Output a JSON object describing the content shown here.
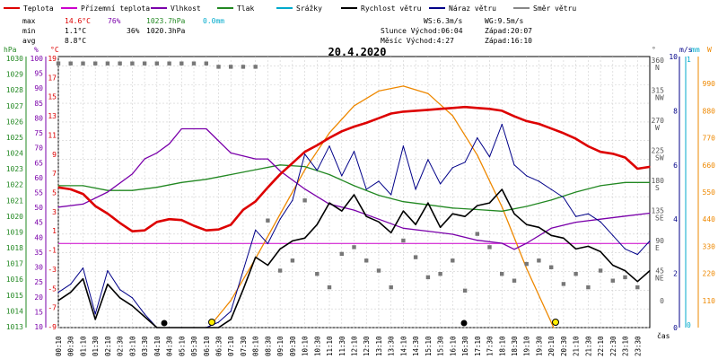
{
  "chart_data": {
    "type": "line",
    "title": "20.4.2020",
    "legend": [
      {
        "name": "Teplota",
        "color": "#dd0000"
      },
      {
        "name": "Přízemní teplota",
        "color": "#cc00cc"
      },
      {
        "name": "Vlhkost",
        "color": "#7a00aa"
      },
      {
        "name": "Tlak",
        "color": "#228822"
      },
      {
        "name": "Srážky",
        "color": "#00aacc"
      },
      {
        "name": "Rychlost větru",
        "color": "#000000"
      },
      {
        "name": "Náraz větru",
        "color": "#000088"
      },
      {
        "name": "Směr větru",
        "color": "#888888"
      }
    ],
    "stats": {
      "max_label": "max",
      "min_label": "min",
      "avg_label": "avg",
      "max_temp": "14.6°C",
      "max_hum": "76%",
      "max_press": "1023.7hPa",
      "max_rain": "0.0mm",
      "min_temp": "1.1°C",
      "min_hum": "36%",
      "min_press": "1020.3hPa",
      "avg_temp": "8.8°C"
    },
    "info": {
      "ws": "WS:6.3m/s",
      "wg": "WG:9.5m/s",
      "sun_rise": "Slunce Východ:06:04",
      "sun_set": "Západ:20:07",
      "moon_rise": "Měsíc  Východ:4:27",
      "moon_set": "Západ:16:10"
    },
    "axis_units": {
      "hpa": "hPa",
      "pct": "%",
      "c": "°C",
      "deg": "°",
      "ms": "m/s",
      "mm": "mm",
      "w": "W",
      "time": "čas"
    },
    "x_ticks": [
      "00:10",
      "00:30",
      "01:10",
      "01:30",
      "02:10",
      "02:30",
      "03:10",
      "03:30",
      "04:10",
      "04:30",
      "05:10",
      "05:30",
      "06:10",
      "06:30",
      "07:10",
      "07:30",
      "08:10",
      "08:30",
      "09:10",
      "09:30",
      "10:10",
      "10:30",
      "11:10",
      "11:30",
      "12:10",
      "12:30",
      "13:10",
      "13:30",
      "14:10",
      "14:30",
      "15:10",
      "15:30",
      "16:10",
      "16:30",
      "17:10",
      "17:30",
      "18:10",
      "18:30",
      "19:10",
      "19:30",
      "20:10",
      "20:30",
      "21:10",
      "21:30",
      "22:10",
      "22:30",
      "23:10",
      "23:30"
    ],
    "hpa_ticks": [
      "1030",
      "1029",
      "1028",
      "1027",
      "1026",
      "1025",
      "1024",
      "1023",
      "1022",
      "1021",
      "1020",
      "1019",
      "1018",
      "1017",
      "1016",
      "1015",
      "1014",
      "1013"
    ],
    "pct_ticks": [
      "100",
      "95",
      "90",
      "85",
      "80",
      "75",
      "70",
      "65",
      "60",
      "55",
      "50",
      "45",
      "40",
      "35",
      "30",
      "25",
      "20",
      "15",
      "10"
    ],
    "c_ticks": [
      "19",
      "17",
      "15",
      "13",
      "11",
      "9",
      "7",
      "5",
      "3",
      "1",
      "-1",
      "-3",
      "-5",
      "-7",
      "-9"
    ],
    "c_tick_values": [
      19,
      17,
      15,
      13,
      11,
      9,
      7,
      5,
      3,
      1,
      -1,
      -3,
      -5,
      -7,
      -9
    ],
    "deg_ticks": [
      "360",
      "315",
      "270",
      "225",
      "180",
      "135",
      "90",
      "45",
      "0"
    ],
    "dir_ticks": [
      "N",
      "NW",
      "W",
      "SW",
      "S",
      "SE",
      "E",
      "NE"
    ],
    "ms_ticks": [
      "10",
      "8",
      "6",
      "4",
      "2",
      "0"
    ],
    "mm_ticks": [
      "1",
      "0"
    ],
    "w_ticks": [
      "990",
      "880",
      "770",
      "660",
      "550",
      "440",
      "330",
      "220",
      "110"
    ],
    "ylim_temp": [
      -9,
      20
    ],
    "ylim_hum": [
      10,
      100
    ],
    "ylim_press": [
      1013,
      1030
    ],
    "ylim_wind": [
      0,
      10
    ],
    "ylim_solar": [
      0,
      1100
    ],
    "series": [
      {
        "name": "Teplota",
        "color": "#dd0000",
        "axis": "temp",
        "x": [
          0,
          0.5,
          1,
          1.5,
          2,
          2.5,
          3,
          3.5,
          4,
          4.5,
          5,
          5.5,
          6,
          6.5,
          7,
          7.5,
          8,
          8.5,
          9,
          9.5,
          10,
          10.5,
          11,
          11.5,
          12,
          12.5,
          13,
          13.5,
          14,
          14.5,
          15,
          15.5,
          16,
          16.5,
          17,
          17.5,
          18,
          18.5,
          19,
          19.5,
          20,
          20.5,
          21,
          21.5,
          22,
          22.5,
          23,
          23.5,
          24
        ],
        "y": [
          6,
          5.8,
          5.3,
          4,
          3.2,
          2.2,
          1.3,
          1.4,
          2.3,
          2.6,
          2.5,
          1.9,
          1.4,
          1.5,
          2,
          3.6,
          4.5,
          6,
          7.4,
          8.6,
          9.8,
          10.5,
          11.3,
          12,
          12.5,
          12.9,
          13.4,
          13.9,
          14.1,
          14.2,
          14.3,
          14.4,
          14.5,
          14.6,
          14.5,
          14.4,
          14.2,
          13.6,
          13.1,
          12.8,
          12.3,
          11.8,
          11.2,
          10.4,
          9.8,
          9.6,
          9.2,
          8,
          8.2
        ]
      },
      {
        "name": "Vlhkost",
        "color": "#7a00aa",
        "axis": "hum",
        "x": [
          0,
          1,
          2,
          3,
          3.5,
          4,
          4.5,
          5,
          5.5,
          6,
          6.5,
          7,
          7.5,
          8,
          8.5,
          9,
          10,
          11,
          12,
          13,
          14,
          15,
          16,
          17,
          18,
          18.5,
          19,
          20,
          21,
          22,
          23,
          24
        ],
        "y": [
          50,
          51,
          55,
          61,
          66,
          68,
          71,
          76,
          76,
          76,
          72,
          68,
          67,
          66,
          66,
          62,
          56,
          51,
          49,
          46,
          43,
          42,
          41,
          39,
          38,
          36,
          38,
          43,
          45,
          46,
          47,
          48
        ]
      },
      {
        "name": "Tlak",
        "color": "#228822",
        "axis": "press",
        "x": [
          0,
          1,
          2,
          3,
          4,
          5,
          6,
          7,
          8,
          9,
          10,
          11,
          12,
          13,
          14,
          15,
          16,
          17,
          18,
          19,
          20,
          21,
          22,
          23,
          24
        ],
        "y": [
          1021.9,
          1021.9,
          1021.6,
          1021.6,
          1021.8,
          1022.1,
          1022.3,
          1022.6,
          1022.9,
          1023.2,
          1023.1,
          1022.6,
          1021.9,
          1021.3,
          1020.9,
          1020.7,
          1020.5,
          1020.4,
          1020.3,
          1020.6,
          1021.0,
          1021.5,
          1021.9,
          1022.1,
          1022.1
        ]
      },
      {
        "name": "Rychlost větru",
        "color": "#000000",
        "axis": "wind",
        "x": [
          0,
          0.5,
          1,
          1.5,
          2,
          2.5,
          3,
          3.5,
          4,
          4.5,
          5,
          5.5,
          6,
          6.5,
          7,
          7.5,
          8,
          8.5,
          9,
          9.5,
          10,
          10.5,
          11,
          11.5,
          12,
          12.5,
          13,
          13.5,
          14,
          14.5,
          15,
          15.5,
          16,
          16.5,
          17,
          17.5,
          18,
          18.5,
          19,
          19.5,
          20,
          20.5,
          21,
          21.5,
          22,
          22.5,
          23,
          23.5,
          24
        ],
        "y": [
          1,
          1.3,
          1.8,
          0.3,
          1.6,
          1.1,
          0.8,
          0.4,
          0,
          0,
          0,
          0,
          0,
          0,
          0.3,
          1.4,
          2.6,
          2.3,
          2.9,
          3.2,
          3.3,
          3.8,
          4.6,
          4.3,
          4.9,
          4.1,
          3.9,
          3.5,
          4.3,
          3.8,
          4.6,
          3.7,
          4.2,
          4.1,
          4.5,
          4.6,
          5.1,
          4.2,
          3.8,
          3.7,
          3.4,
          3.3,
          2.9,
          3,
          2.8,
          2.3,
          2.1,
          1.7,
          2.1
        ]
      },
      {
        "name": "Náraz větru",
        "color": "#000088",
        "axis": "wind",
        "x": [
          0,
          0.5,
          1,
          1.5,
          2,
          2.5,
          3,
          3.5,
          4,
          4.5,
          5,
          5.5,
          6,
          6.5,
          7,
          7.5,
          8,
          8.5,
          9,
          9.5,
          10,
          10.5,
          11,
          11.5,
          12,
          12.5,
          13,
          13.5,
          14,
          14.5,
          15,
          15.5,
          16,
          16.5,
          17,
          17.5,
          18,
          18.5,
          19,
          19.5,
          20,
          20.5,
          21,
          21.5,
          22,
          22.5,
          23,
          23.5,
          24
        ],
        "y": [
          1.3,
          1.6,
          2.2,
          0.5,
          2.1,
          1.4,
          1.1,
          0.5,
          0,
          0,
          0,
          0,
          0,
          0.2,
          0.6,
          2.1,
          3.6,
          3.1,
          4,
          4.7,
          6.4,
          5.8,
          6.7,
          5.6,
          6.5,
          5.1,
          5.4,
          4.9,
          6.7,
          5.1,
          6.2,
          5.3,
          5.9,
          6.1,
          7,
          6.3,
          7.5,
          6,
          5.6,
          5.4,
          5.1,
          4.8,
          4.1,
          4.2,
          3.9,
          3.4,
          2.9,
          2.7,
          3.2
        ]
      },
      {
        "name": "Solar",
        "color": "#ee8800",
        "axis": "solar",
        "x": [
          6.1,
          7,
          8,
          9,
          10,
          11,
          12,
          13,
          14,
          15,
          16,
          17,
          18,
          19,
          20.1
        ],
        "y": [
          0,
          110,
          280,
          460,
          640,
          790,
          900,
          960,
          980,
          950,
          860,
          700,
          490,
          240,
          0
        ]
      }
    ],
    "wind_dir": {
      "x": [
        0,
        0.5,
        1,
        1.5,
        2,
        2.5,
        3,
        3.5,
        4,
        4.5,
        5,
        5.5,
        6,
        6.5,
        7,
        7.5,
        8,
        8.5,
        9,
        9.5,
        10,
        10.5,
        11,
        11.5,
        12,
        12.5,
        13,
        13.5,
        14,
        14.5,
        15,
        15.5,
        16,
        16.5,
        17,
        17.5,
        18,
        18.5,
        19,
        19.5,
        20,
        20.5,
        21,
        21.5,
        22,
        22.5,
        23,
        23.5
      ],
      "y": [
        355,
        355,
        355,
        355,
        355,
        355,
        355,
        355,
        355,
        355,
        355,
        355,
        355,
        350,
        350,
        350,
        350,
        120,
        45,
        60,
        150,
        40,
        20,
        70,
        80,
        60,
        45,
        20,
        90,
        65,
        35,
        40,
        60,
        15,
        100,
        80,
        40,
        30,
        55,
        60,
        50,
        25,
        40,
        20,
        45,
        30,
        35,
        20
      ]
    }
  }
}
